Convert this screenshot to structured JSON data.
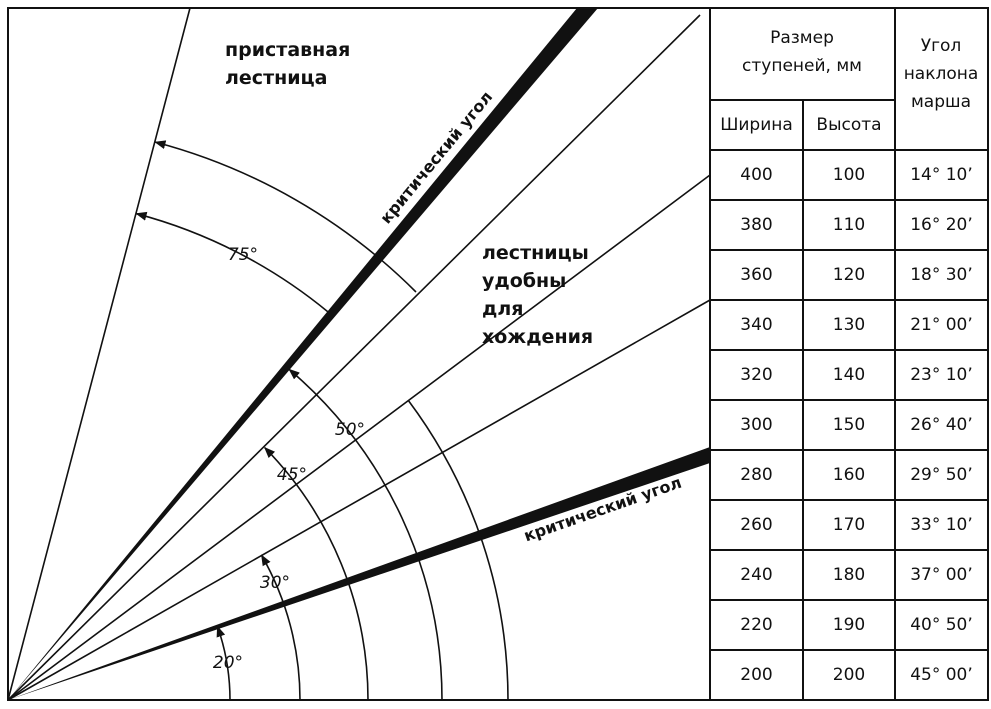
{
  "diagram": {
    "ladder_label": [
      "приставная",
      "лестница"
    ],
    "comfortable_label": [
      "лестницы",
      "удобны",
      "для",
      "хождения"
    ],
    "critical_labels": [
      "критический угол",
      "критический угол"
    ],
    "angle_labels": [
      "75°",
      "50°",
      "45°",
      "30°",
      "20°"
    ]
  },
  "table": {
    "header": {
      "size_group": [
        "Размер",
        "ступеней, мм"
      ],
      "angle": [
        "Угол",
        "наклона",
        "марша"
      ],
      "columns": [
        "Ширина",
        "Высота"
      ]
    },
    "rows": [
      [
        400,
        100,
        "14° 10’"
      ],
      [
        380,
        110,
        "16° 20’"
      ],
      [
        360,
        120,
        "18° 30’"
      ],
      [
        340,
        130,
        "21° 00’"
      ],
      [
        320,
        140,
        "23° 10’"
      ],
      [
        300,
        150,
        "26° 40’"
      ],
      [
        280,
        160,
        "29° 50’"
      ],
      [
        260,
        170,
        "33° 10’"
      ],
      [
        240,
        180,
        "37° 00’"
      ],
      [
        220,
        190,
        "40° 50’"
      ],
      [
        200,
        200,
        "45° 00’"
      ]
    ]
  }
}
